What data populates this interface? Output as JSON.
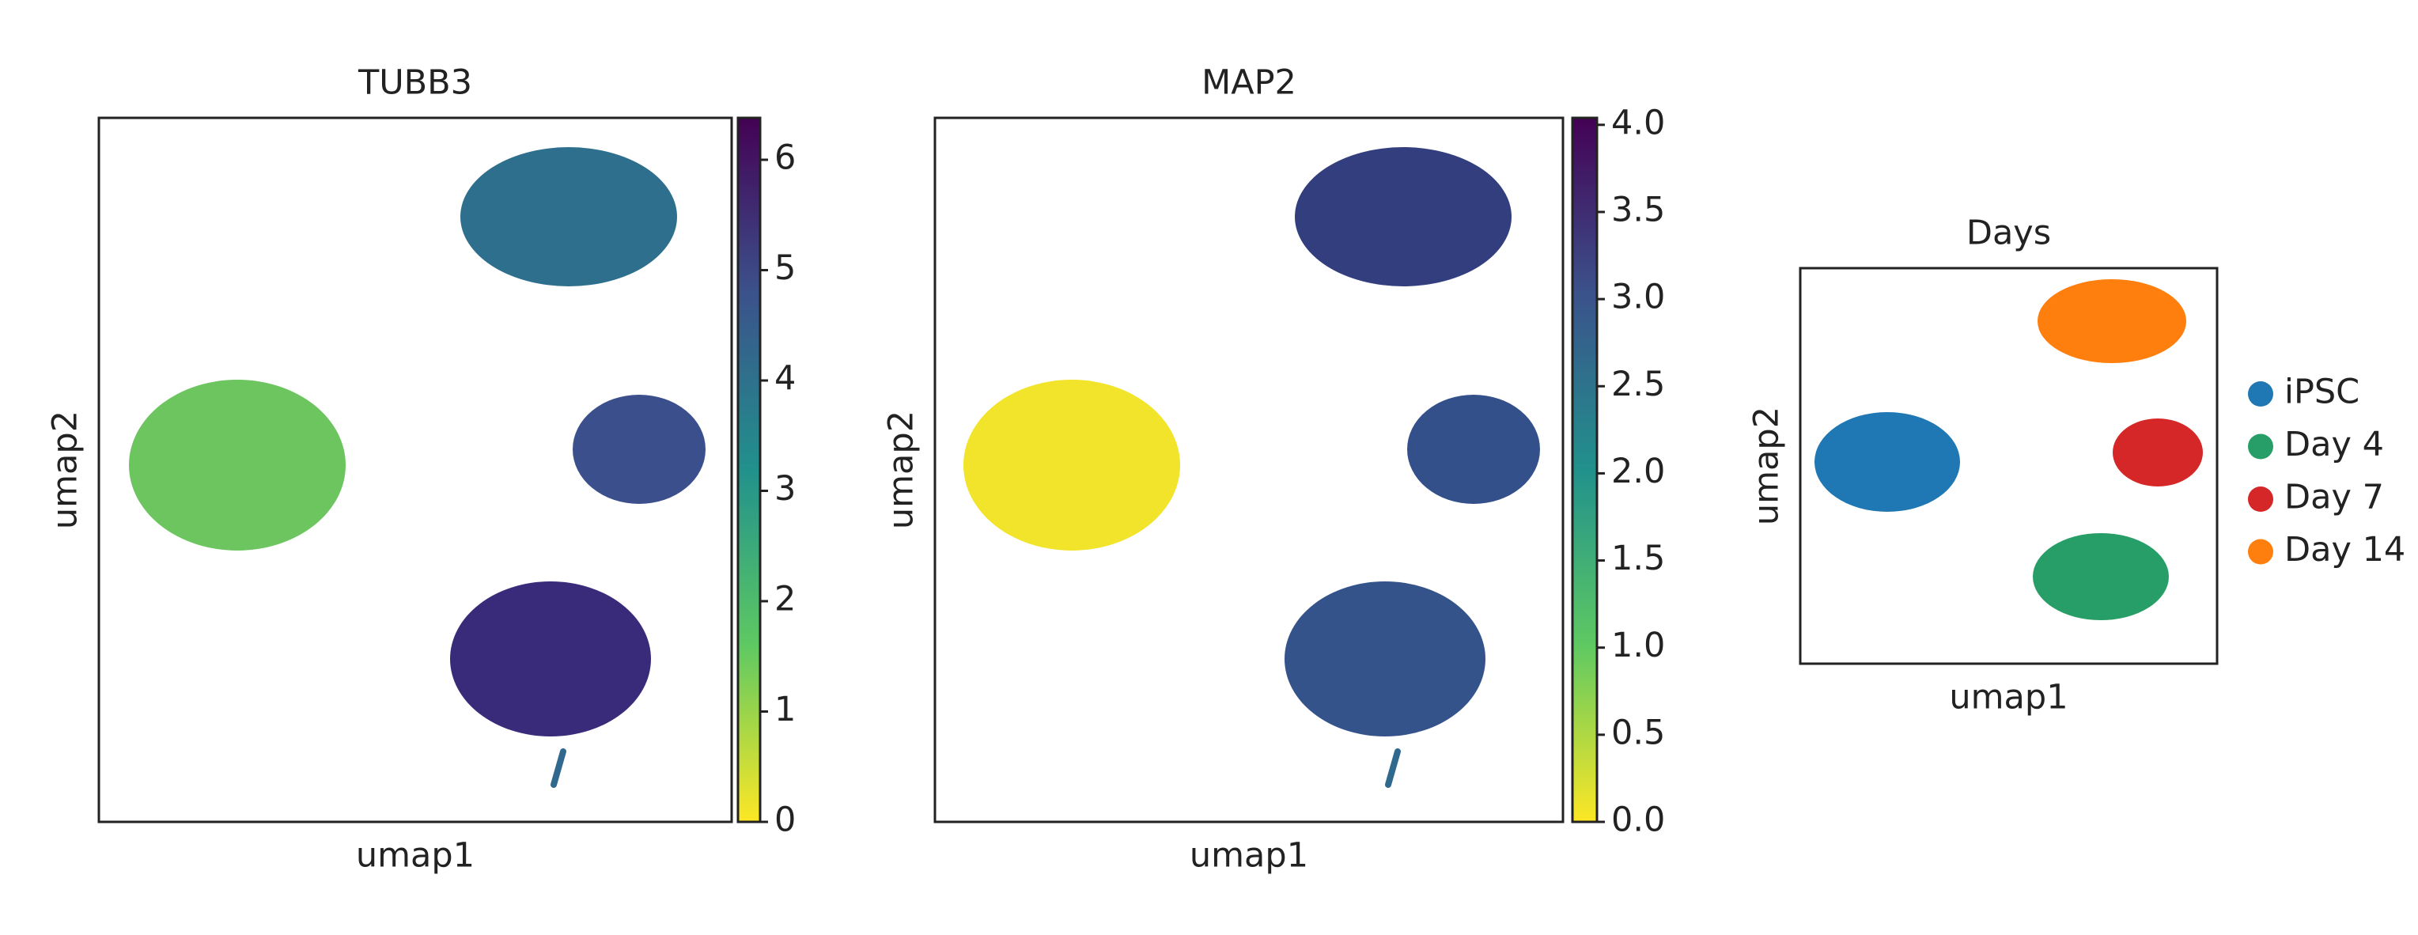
{
  "chart_data": [
    {
      "type": "scatter",
      "title": "TUBB3",
      "x_label": "umap1",
      "y_label": "umap2",
      "colorbar": {
        "ylim": [
          0,
          6.38
        ],
        "yticks": [
          0,
          1,
          2,
          3,
          4,
          5,
          6
        ],
        "colors": [
          "#fde725",
          "#5ec962",
          "#21918c",
          "#3b528b",
          "#440154"
        ]
      }
    },
    {
      "type": "scatter",
      "title": "MAP2",
      "x_label": "umap1",
      "y_label": "umap2",
      "colorbar": {
        "ylim": [
          0,
          4.04
        ],
        "yticks": [
          {
            "value": 0,
            "label": "0.0"
          },
          0.5,
          {
            "value": 1,
            "label": "1.0"
          },
          1.5,
          {
            "value": 2,
            "label": "2.0"
          },
          2.5,
          {
            "value": 3,
            "label": "3.0"
          },
          3.5,
          {
            "value": 4,
            "label": "4.0"
          }
        ],
        "colors": [
          "#fde725",
          "#5ec962",
          "#21918c",
          "#3b528b",
          "#440154"
        ]
      }
    },
    {
      "type": "scatter",
      "title": "Days",
      "x_label": "umap1",
      "y_label": "umap2",
      "series": [
        {
          "name": "iPSC",
          "color": "#1f77b4"
        },
        {
          "name": "Day 4",
          "color": "#279e68"
        },
        {
          "name": "Day 7",
          "color": "#d62728"
        },
        {
          "name": "Day 14",
          "color": "#ff7f0e"
        }
      ]
    }
  ]
}
